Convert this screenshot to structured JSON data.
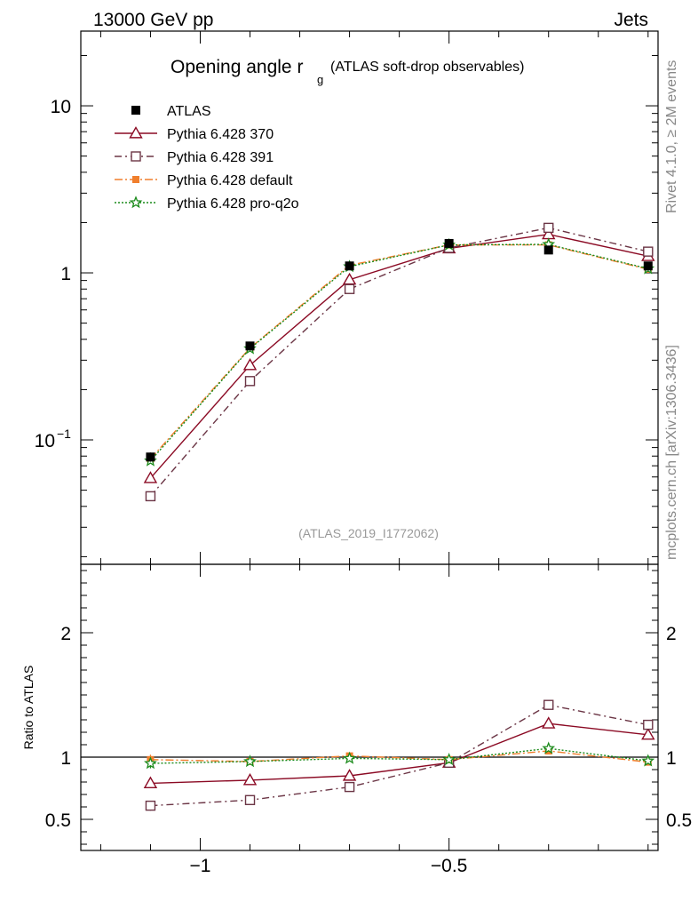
{
  "header": {
    "energy_label": "13000 GeV pp",
    "process_label": "Jets",
    "rivet_label": "Rivet 4.1.0, ≥ 2M events",
    "source_label": "mcplots.cern.ch [arXiv:1306.3436]",
    "analysis_label": "(ATLAS_2019_I1772062)"
  },
  "chart_data": {
    "type": "line",
    "title": "Opening angle r",
    "title_subscript": "g",
    "subtitle": "(ATLAS soft-drop observables)",
    "xlabel": "",
    "ylabel": "",
    "ratio_ylabel": "Ratio to ATLAS",
    "xlim": [
      -1.24,
      -0.08
    ],
    "ylim": [
      0.018,
      28
    ],
    "ratio_ylim": [
      0.25,
      2.55
    ],
    "yscale": "log",
    "x_ticks": [
      -1,
      -0.5
    ],
    "x_tick_labels": [
      "−1",
      "−0.5"
    ],
    "y_tick_labels": [
      {
        "value": 10,
        "label": "10"
      },
      {
        "value": 1,
        "label": "1"
      },
      {
        "value": 0.1,
        "label": "10",
        "exponent": "−1"
      }
    ],
    "ratio_tick_labels": [
      {
        "value": 2,
        "label": "2"
      },
      {
        "value": 1,
        "label": "1"
      },
      {
        "value": 0.5,
        "label": "0.5"
      }
    ],
    "x": [
      -1.1,
      -0.9,
      -0.7,
      -0.5,
      -0.3,
      -0.1
    ],
    "data": {
      "name": "ATLAS",
      "values": [
        0.079,
        0.365,
        1.1,
        1.5,
        1.37,
        1.1
      ],
      "errors": [
        0.005,
        0.015,
        0.03,
        0.03,
        0.03,
        0.03
      ]
    },
    "series": [
      {
        "name": "Pythia 6.428 370",
        "color": "#8b0a24",
        "dash": "",
        "marker": "triangle",
        "values": [
          0.059,
          0.28,
          0.91,
          1.4,
          1.7,
          1.26
        ],
        "ratio": [
          0.79,
          0.815,
          0.85,
          0.955,
          1.27,
          1.18
        ],
        "ratio_errors": [
          0.04,
          0.01,
          0.01,
          0.01,
          0.01,
          0.01
        ]
      },
      {
        "name": "Pythia 6.428 391",
        "color": "#6b3545",
        "dash": "8,4,2,4",
        "marker": "square",
        "values": [
          0.046,
          0.225,
          0.8,
          1.41,
          1.86,
          1.34
        ],
        "ratio": [
          0.61,
          0.655,
          0.76,
          0.955,
          1.42,
          1.26
        ],
        "ratio_errors": [
          0.04,
          0.01,
          0.01,
          0.01,
          0.01,
          0.01
        ]
      },
      {
        "name": "Pythia 6.428 default",
        "color": "#f07f2d",
        "dash": "9,3,2,3",
        "marker": "filled-square",
        "values": [
          0.077,
          0.355,
          1.11,
          1.47,
          1.47,
          1.05
        ],
        "ratio": [
          0.98,
          0.965,
          1.01,
          0.98,
          1.05,
          0.96
        ],
        "ratio_errors": [
          0.04,
          0.01,
          0.01,
          0.01,
          0.01,
          0.01
        ]
      },
      {
        "name": "Pythia 6.428 pro-q2o",
        "color": "#1a8a1a",
        "dash": "2,2",
        "marker": "star",
        "values": [
          0.075,
          0.352,
          1.09,
          1.47,
          1.48,
          1.06
        ],
        "ratio": [
          0.95,
          0.965,
          0.99,
          0.98,
          1.07,
          0.97
        ],
        "ratio_errors": [
          0.04,
          0.01,
          0.01,
          0.01,
          0.01,
          0.01
        ]
      }
    ]
  }
}
